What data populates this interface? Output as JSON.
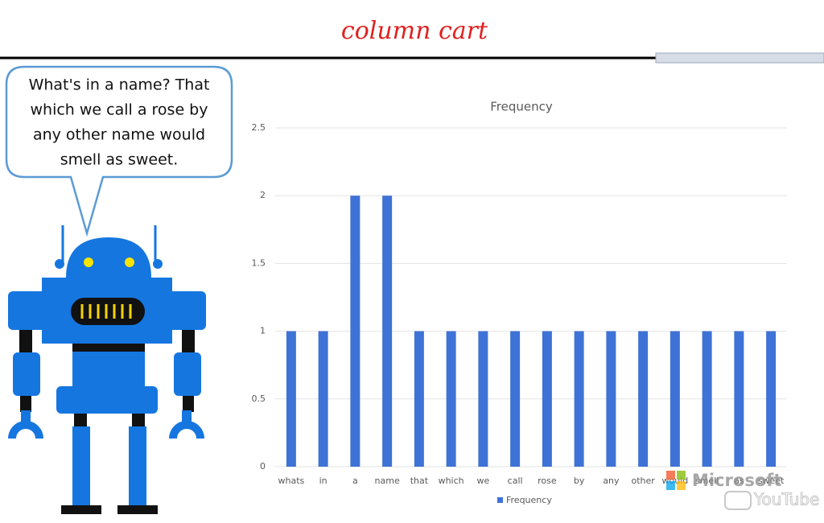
{
  "annotation": "column cart",
  "speech_bubble": {
    "lines": [
      "What's in a name? That",
      "which we call a rose by",
      "any other name would",
      "smell as sweet."
    ]
  },
  "watermarks": [
    "Microsoft",
    "YouTube"
  ],
  "chart_data": {
    "type": "bar",
    "title": "Frequency",
    "categories": [
      "whats",
      "in",
      "a",
      "name",
      "that",
      "which",
      "we",
      "call",
      "rose",
      "by",
      "any",
      "other",
      "would",
      "smell",
      "as",
      "sweet"
    ],
    "series": [
      {
        "name": "Frequency",
        "color": "#3f72d6",
        "values": [
          1,
          1,
          2,
          2,
          1,
          1,
          1,
          1,
          1,
          1,
          1,
          1,
          1,
          1,
          1,
          1
        ]
      }
    ],
    "ylim": [
      0,
      2.5
    ],
    "yticks": [
      0,
      0.5,
      1,
      1.5,
      2,
      2.5
    ],
    "grid": true,
    "legend": "bottom"
  }
}
